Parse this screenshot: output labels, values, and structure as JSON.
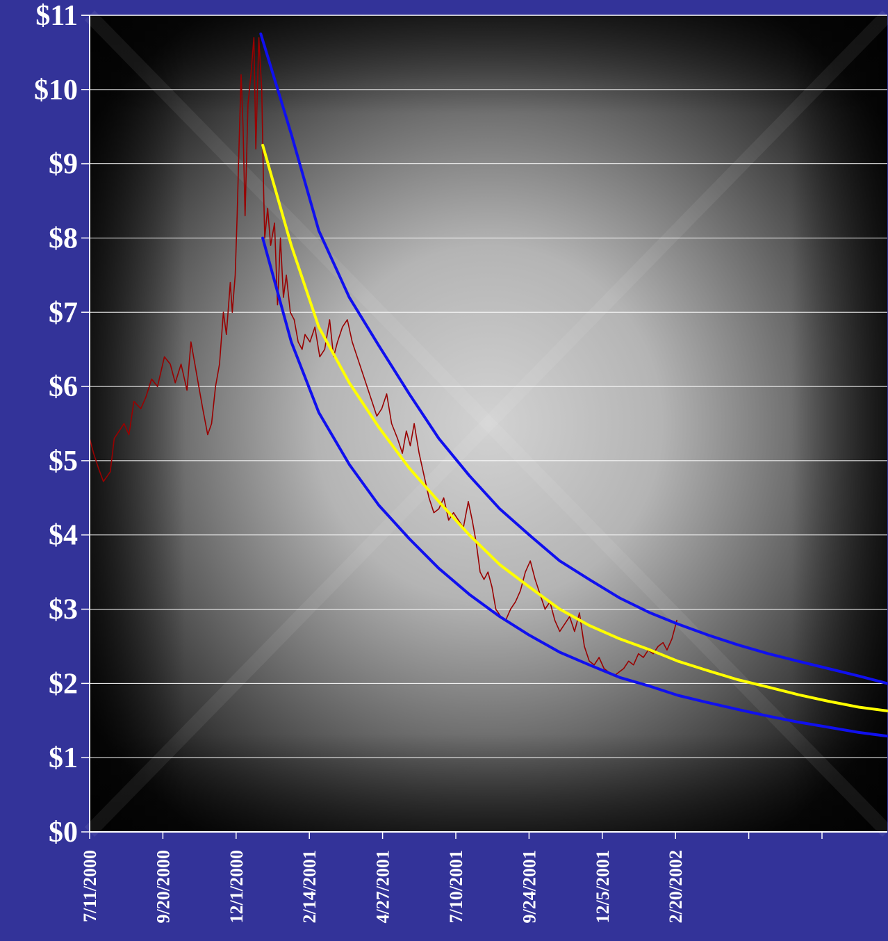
{
  "chart_data": {
    "type": "line",
    "title": "",
    "xlabel": "",
    "ylabel": "",
    "ylim": [
      0,
      11
    ],
    "x_range": [
      "7/11/2000",
      "2002-09-30"
    ],
    "y_ticks": [
      0,
      1,
      2,
      3,
      4,
      5,
      6,
      7,
      8,
      9,
      10,
      11
    ],
    "y_tick_labels": [
      "$0",
      "$1",
      "$2",
      "$3",
      "$4",
      "$5",
      "$6",
      "$7",
      "$8",
      "$9",
      "$10",
      "$11"
    ],
    "x_tick_labels": [
      "7/11/2000",
      "9/20/2000",
      "12/1/2000",
      "2/14/2001",
      "4/27/2001",
      "7/10/2001",
      "9/24/2001",
      "12/5/2001",
      "2/20/2002",
      "",
      ""
    ],
    "grid": "horizontal",
    "legend": "none",
    "background": "radial grey gradient, dark corners",
    "series": [
      {
        "color": "#990000",
        "style": "price",
        "points": [
          [
            "2000-07-11",
            5.3
          ],
          [
            "2000-07-15",
            5.1
          ],
          [
            "2000-07-20",
            4.9
          ],
          [
            "2000-07-25",
            4.72
          ],
          [
            "2000-08-01",
            4.85
          ],
          [
            "2000-08-05",
            5.3
          ],
          [
            "2000-08-10",
            5.4
          ],
          [
            "2000-08-15",
            5.5
          ],
          [
            "2000-08-20",
            5.35
          ],
          [
            "2000-08-25",
            5.8
          ],
          [
            "2000-09-01",
            5.7
          ],
          [
            "2000-09-06",
            5.85
          ],
          [
            "2000-09-12",
            6.1
          ],
          [
            "2000-09-18",
            6.0
          ],
          [
            "2000-09-25",
            6.4
          ],
          [
            "2000-10-01",
            6.3
          ],
          [
            "2000-10-06",
            6.05
          ],
          [
            "2000-10-12",
            6.3
          ],
          [
            "2000-10-18",
            5.95
          ],
          [
            "2000-10-22",
            6.6
          ],
          [
            "2000-10-26",
            6.3
          ],
          [
            "2000-10-30",
            6.0
          ],
          [
            "2000-11-03",
            5.7
          ],
          [
            "2000-11-08",
            5.35
          ],
          [
            "2000-11-12",
            5.5
          ],
          [
            "2000-11-16",
            6.0
          ],
          [
            "2000-11-20",
            6.3
          ],
          [
            "2000-11-24",
            7.0
          ],
          [
            "2000-11-27",
            6.7
          ],
          [
            "2000-12-01",
            7.4
          ],
          [
            "2000-12-03",
            7.0
          ],
          [
            "2000-12-06",
            7.5
          ],
          [
            "2000-12-08",
            8.3
          ],
          [
            "2000-12-10",
            9.3
          ],
          [
            "2000-12-12",
            10.2
          ],
          [
            "2000-12-14",
            9.5
          ],
          [
            "2000-12-16",
            8.3
          ],
          [
            "2000-12-19",
            9.8
          ],
          [
            "2000-12-22",
            10.2
          ],
          [
            "2000-12-25",
            10.7
          ],
          [
            "2000-12-27",
            9.2
          ],
          [
            "2000-12-30",
            10.7
          ],
          [
            "2001-01-02",
            10.0
          ],
          [
            "2001-01-04",
            8.6
          ],
          [
            "2001-01-05",
            8.0
          ],
          [
            "2001-01-08",
            8.4
          ],
          [
            "2001-01-11",
            7.9
          ],
          [
            "2001-01-15",
            8.2
          ],
          [
            "2001-01-18",
            7.1
          ],
          [
            "2001-01-21",
            8.0
          ],
          [
            "2001-01-24",
            7.2
          ],
          [
            "2001-01-27",
            7.5
          ],
          [
            "2001-01-31",
            7.0
          ],
          [
            "2001-02-04",
            6.9
          ],
          [
            "2001-02-08",
            6.6
          ],
          [
            "2001-02-12",
            6.5
          ],
          [
            "2001-02-15",
            6.7
          ],
          [
            "2001-02-20",
            6.6
          ],
          [
            "2001-02-25",
            6.8
          ],
          [
            "2001-03-02",
            6.4
          ],
          [
            "2001-03-07",
            6.5
          ],
          [
            "2001-03-12",
            6.9
          ],
          [
            "2001-03-16",
            6.4
          ],
          [
            "2001-03-20",
            6.6
          ],
          [
            "2001-03-25",
            6.8
          ],
          [
            "2001-03-30",
            6.9
          ],
          [
            "2001-04-04",
            6.6
          ],
          [
            "2001-04-09",
            6.4
          ],
          [
            "2001-04-14",
            6.2
          ],
          [
            "2001-04-19",
            6.0
          ],
          [
            "2001-04-24",
            5.8
          ],
          [
            "2001-04-29",
            5.6
          ],
          [
            "2001-05-04",
            5.7
          ],
          [
            "2001-05-09",
            5.9
          ],
          [
            "2001-05-14",
            5.5
          ],
          [
            "2001-05-20",
            5.3
          ],
          [
            "2001-05-25",
            5.1
          ],
          [
            "2001-05-29",
            5.4
          ],
          [
            "2001-06-02",
            5.2
          ],
          [
            "2001-06-06",
            5.5
          ],
          [
            "2001-06-11",
            5.1
          ],
          [
            "2001-06-16",
            4.8
          ],
          [
            "2001-06-21",
            4.5
          ],
          [
            "2001-06-26",
            4.3
          ],
          [
            "2001-07-01",
            4.35
          ],
          [
            "2001-07-06",
            4.5
          ],
          [
            "2001-07-11",
            4.2
          ],
          [
            "2001-07-16",
            4.3
          ],
          [
            "2001-07-21",
            4.2
          ],
          [
            "2001-07-26",
            4.1
          ],
          [
            "2001-07-31",
            4.45
          ],
          [
            "2001-08-04",
            4.2
          ],
          [
            "2001-08-08",
            3.9
          ],
          [
            "2001-08-12",
            3.5
          ],
          [
            "2001-08-16",
            3.4
          ],
          [
            "2001-08-20",
            3.5
          ],
          [
            "2001-08-24",
            3.3
          ],
          [
            "2001-08-28",
            3.0
          ],
          [
            "2001-09-02",
            2.9
          ],
          [
            "2001-09-07",
            2.85
          ],
          [
            "2001-09-12",
            3.0
          ],
          [
            "2001-09-17",
            3.1
          ],
          [
            "2001-09-22",
            3.25
          ],
          [
            "2001-09-27",
            3.5
          ],
          [
            "2001-10-02",
            3.65
          ],
          [
            "2001-10-07",
            3.4
          ],
          [
            "2001-10-12",
            3.2
          ],
          [
            "2001-10-17",
            3.0
          ],
          [
            "2001-10-22",
            3.1
          ],
          [
            "2001-10-27",
            2.85
          ],
          [
            "2001-11-01",
            2.7
          ],
          [
            "2001-11-06",
            2.8
          ],
          [
            "2001-11-11",
            2.9
          ],
          [
            "2001-11-16",
            2.7
          ],
          [
            "2001-11-21",
            2.95
          ],
          [
            "2001-11-26",
            2.5
          ],
          [
            "2001-12-01",
            2.3
          ],
          [
            "2001-12-06",
            2.25
          ],
          [
            "2001-12-11",
            2.35
          ],
          [
            "2001-12-16",
            2.2
          ],
          [
            "2001-12-21",
            2.15
          ],
          [
            "2001-12-26",
            2.1
          ],
          [
            "2001-12-31",
            2.15
          ],
          [
            "2002-01-05",
            2.2
          ],
          [
            "2002-01-10",
            2.3
          ],
          [
            "2002-01-15",
            2.25
          ],
          [
            "2002-01-20",
            2.4
          ],
          [
            "2002-01-25",
            2.35
          ],
          [
            "2002-01-30",
            2.45
          ],
          [
            "2002-02-04",
            2.4
          ],
          [
            "2002-02-09",
            2.5
          ],
          [
            "2002-02-14",
            2.55
          ],
          [
            "2002-02-18",
            2.45
          ],
          [
            "2002-02-23",
            2.6
          ],
          [
            "2002-02-28",
            2.85
          ]
        ]
      },
      {
        "color": "#1010ee",
        "style": "upper band",
        "points": [
          [
            "2001-01-01",
            10.75
          ],
          [
            "2001-02-01",
            9.4
          ],
          [
            "2001-03-01",
            8.1
          ],
          [
            "2001-04-01",
            7.2
          ],
          [
            "2001-05-01",
            6.55
          ],
          [
            "2001-06-01",
            5.9
          ],
          [
            "2001-07-01",
            5.3
          ],
          [
            "2001-08-01",
            4.8
          ],
          [
            "2001-09-01",
            4.35
          ],
          [
            "2001-10-01",
            4.0
          ],
          [
            "2001-11-01",
            3.65
          ],
          [
            "2001-12-01",
            3.4
          ],
          [
            "2002-01-01",
            3.15
          ],
          [
            "2002-02-01",
            2.95
          ],
          [
            "2002-03-01",
            2.8
          ],
          [
            "2002-04-01",
            2.65
          ],
          [
            "2002-05-01",
            2.52
          ],
          [
            "2002-06-01",
            2.4
          ],
          [
            "2002-07-01",
            2.3
          ],
          [
            "2002-08-01",
            2.2
          ],
          [
            "2002-09-01",
            2.1
          ],
          [
            "2002-09-30",
            2.0
          ]
        ]
      },
      {
        "color": "#ffff00",
        "style": "trend",
        "points": [
          [
            "2001-01-03",
            9.25
          ],
          [
            "2001-02-01",
            7.9
          ],
          [
            "2001-03-01",
            6.8
          ],
          [
            "2001-04-01",
            6.05
          ],
          [
            "2001-05-01",
            5.45
          ],
          [
            "2001-06-01",
            4.9
          ],
          [
            "2001-07-01",
            4.45
          ],
          [
            "2001-08-01",
            4.0
          ],
          [
            "2001-09-01",
            3.6
          ],
          [
            "2001-10-01",
            3.3
          ],
          [
            "2001-11-01",
            3.0
          ],
          [
            "2001-12-01",
            2.78
          ],
          [
            "2002-01-01",
            2.6
          ],
          [
            "2002-02-01",
            2.45
          ],
          [
            "2002-03-01",
            2.3
          ],
          [
            "2002-04-01",
            2.17
          ],
          [
            "2002-05-01",
            2.05
          ],
          [
            "2002-06-01",
            1.95
          ],
          [
            "2002-07-01",
            1.85
          ],
          [
            "2002-08-01",
            1.76
          ],
          [
            "2002-09-01",
            1.68
          ],
          [
            "2002-09-30",
            1.63
          ]
        ]
      },
      {
        "color": "#1010ee",
        "style": "lower band",
        "points": [
          [
            "2001-01-03",
            8.0
          ],
          [
            "2001-02-01",
            6.6
          ],
          [
            "2001-03-01",
            5.65
          ],
          [
            "2001-04-01",
            4.95
          ],
          [
            "2001-05-01",
            4.4
          ],
          [
            "2001-06-01",
            3.95
          ],
          [
            "2001-07-01",
            3.55
          ],
          [
            "2001-08-01",
            3.2
          ],
          [
            "2001-09-01",
            2.9
          ],
          [
            "2001-10-01",
            2.65
          ],
          [
            "2001-11-01",
            2.42
          ],
          [
            "2001-12-01",
            2.25
          ],
          [
            "2002-01-01",
            2.08
          ],
          [
            "2002-02-01",
            1.96
          ],
          [
            "2002-03-01",
            1.84
          ],
          [
            "2002-04-01",
            1.74
          ],
          [
            "2002-05-01",
            1.65
          ],
          [
            "2002-06-01",
            1.56
          ],
          [
            "2002-07-01",
            1.48
          ],
          [
            "2002-08-01",
            1.41
          ],
          [
            "2002-09-01",
            1.34
          ],
          [
            "2002-09-30",
            1.29
          ]
        ]
      }
    ]
  }
}
